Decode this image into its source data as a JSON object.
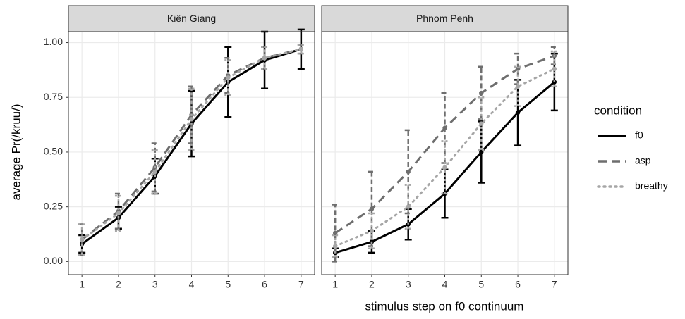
{
  "x_label": "stimulus step on f0 continuum",
  "y_label": "average Pr(/kruu/)",
  "legend_title": "condition",
  "chart_data": [
    {
      "type": "line",
      "title": "Kiên Giang",
      "x": [
        1,
        2,
        3,
        4,
        5,
        6,
        7
      ],
      "xlim": [
        0.63,
        7.37
      ],
      "xticks": [
        1,
        2,
        3,
        4,
        5,
        6,
        7
      ],
      "ylim": [
        -0.06,
        1.05
      ],
      "yticks": [
        {
          "value": 0,
          "label": "0.00"
        },
        {
          "value": 0.25,
          "label": "0.25"
        },
        {
          "value": 0.5,
          "label": "0.50"
        },
        {
          "value": 0.75,
          "label": "0.75"
        },
        {
          "value": 1,
          "label": "1.00"
        }
      ],
      "grid": true,
      "series": [
        {
          "name": "f0",
          "color": "#000000",
          "dash": "solid",
          "values": [
            0.08,
            0.2,
            0.39,
            0.63,
            0.82,
            0.92,
            0.97
          ],
          "errors": [
            0.04,
            0.05,
            0.08,
            0.15,
            0.16,
            0.13,
            0.09
          ]
        },
        {
          "name": "asp",
          "color": "#6e6e6e",
          "dash": "dashed",
          "values": [
            0.1,
            0.23,
            0.43,
            0.67,
            0.85,
            0.93,
            0.97
          ],
          "errors": [
            0.07,
            0.08,
            0.11,
            0.13,
            0.08,
            0.05,
            0.02
          ]
        },
        {
          "name": "breathy",
          "color": "#a6a6a6",
          "dash": "dotted",
          "values": [
            0.1,
            0.22,
            0.41,
            0.65,
            0.84,
            0.93,
            0.97
          ],
          "errors": [
            0.07,
            0.08,
            0.1,
            0.14,
            0.08,
            0.05,
            0.02
          ]
        }
      ]
    },
    {
      "type": "line",
      "title": "Phnom Penh",
      "x": [
        1,
        2,
        3,
        4,
        5,
        6,
        7
      ],
      "xlim": [
        0.63,
        7.37
      ],
      "xticks": [
        1,
        2,
        3,
        4,
        5,
        6,
        7
      ],
      "ylim": [
        -0.06,
        1.05
      ],
      "yticks": [
        {
          "value": 0,
          "label": "0.00"
        },
        {
          "value": 0.25,
          "label": "0.25"
        },
        {
          "value": 0.5,
          "label": "0.50"
        },
        {
          "value": 0.75,
          "label": "0.75"
        },
        {
          "value": 1,
          "label": "1.00"
        }
      ],
      "grid": true,
      "series": [
        {
          "name": "f0",
          "color": "#000000",
          "dash": "solid",
          "values": [
            0.04,
            0.09,
            0.17,
            0.31,
            0.5,
            0.68,
            0.82
          ],
          "errors": [
            0.02,
            0.05,
            0.07,
            0.11,
            0.14,
            0.15,
            0.13
          ]
        },
        {
          "name": "asp",
          "color": "#6e6e6e",
          "dash": "dashed",
          "values": [
            0.13,
            0.24,
            0.41,
            0.61,
            0.77,
            0.88,
            0.94
          ],
          "errors": [
            0.13,
            0.17,
            0.19,
            0.16,
            0.12,
            0.07,
            0.04
          ]
        },
        {
          "name": "breathy",
          "color": "#a6a6a6",
          "dash": "dotted",
          "values": [
            0.07,
            0.14,
            0.25,
            0.43,
            0.63,
            0.8,
            0.88
          ],
          "errors": [
            0.05,
            0.08,
            0.1,
            0.12,
            0.12,
            0.09,
            0.08
          ]
        }
      ]
    }
  ]
}
